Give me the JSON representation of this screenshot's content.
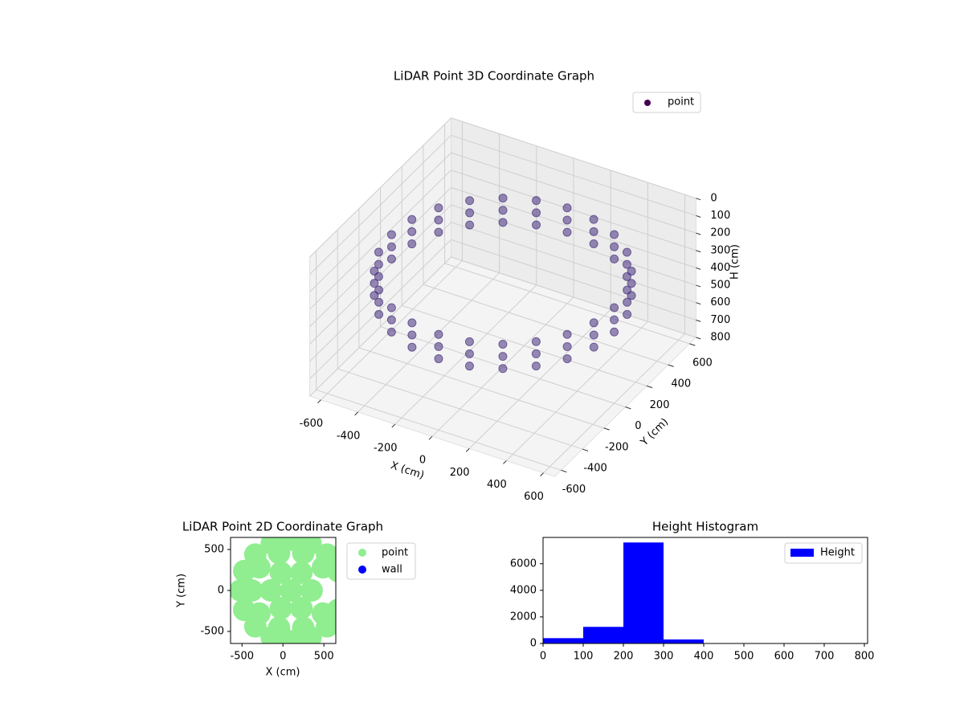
{
  "chart_data": [
    {
      "type": "scatter3d",
      "title": "LiDAR Point 3D Coordinate Graph",
      "xlabel": "X (cm)",
      "ylabel": "Y (cm)",
      "zlabel": "H (cm)",
      "xlim": [
        -660,
        660
      ],
      "ylim": [
        -660,
        660
      ],
      "zlim": [
        800,
        0
      ],
      "xticks": [
        -600,
        -400,
        -200,
        0,
        200,
        400,
        600
      ],
      "yticks": [
        -600,
        -400,
        -200,
        0,
        200,
        400,
        600
      ],
      "zticks": [
        0,
        100,
        200,
        300,
        400,
        500,
        600,
        700,
        800
      ],
      "grid": true,
      "legend": "upper right",
      "series": [
        {
          "name": "point",
          "color": "#46307e",
          "legend_color": "#440154",
          "x": [
            600,
            580,
            520,
            424,
            300,
            155,
            0,
            -155,
            -300,
            -424,
            -520,
            -580,
            -600,
            -580,
            -520,
            -424,
            -300,
            -155,
            0,
            155,
            300,
            424,
            520,
            580,
            600,
            580,
            520,
            424,
            300,
            155,
            0,
            -155,
            -300,
            -424,
            -520,
            -580,
            -600,
            -580,
            -520,
            -424,
            -300,
            -155,
            0,
            155,
            300,
            424,
            520,
            580,
            600,
            580,
            520,
            424,
            300,
            155,
            0,
            -155,
            -300,
            -424,
            -520,
            -580,
            -600,
            -580,
            -520,
            -424,
            -300,
            -155,
            0,
            155,
            300,
            424,
            520,
            580
          ],
          "y": [
            0,
            155,
            300,
            424,
            520,
            580,
            600,
            580,
            520,
            424,
            300,
            155,
            0,
            -155,
            -300,
            -424,
            -520,
            -580,
            -600,
            -580,
            -520,
            -424,
            -300,
            -155,
            0,
            155,
            300,
            424,
            520,
            580,
            600,
            580,
            520,
            424,
            300,
            155,
            0,
            -155,
            -300,
            -424,
            -520,
            -580,
            -600,
            -580,
            -520,
            -424,
            -300,
            -155,
            0,
            155,
            300,
            424,
            520,
            580,
            600,
            580,
            520,
            424,
            300,
            155,
            0,
            -155,
            -300,
            -424,
            -520,
            -580,
            -600,
            -580,
            -520,
            -424,
            -300,
            -155
          ],
          "z": [
            250,
            250,
            250,
            250,
            250,
            250,
            250,
            250,
            250,
            250,
            250,
            250,
            250,
            250,
            250,
            250,
            250,
            250,
            250,
            250,
            250,
            250,
            250,
            250,
            320,
            320,
            320,
            320,
            320,
            320,
            320,
            320,
            320,
            320,
            320,
            320,
            320,
            320,
            320,
            320,
            320,
            320,
            320,
            320,
            320,
            320,
            320,
            320,
            390,
            390,
            390,
            390,
            390,
            390,
            390,
            390,
            390,
            390,
            390,
            390,
            390,
            390,
            390,
            390,
            390,
            390,
            390,
            390,
            390,
            390,
            390,
            390
          ]
        }
      ]
    },
    {
      "type": "scatter",
      "title": "LiDAR Point 2D Coordinate Graph",
      "xlabel": "X (cm)",
      "ylabel": "Y (cm)",
      "xlim": [
        -640,
        645
      ],
      "ylim": [
        -647,
        647
      ],
      "xticks": [
        -500,
        0,
        500
      ],
      "yticks": [
        -500,
        0,
        500
      ],
      "legend": "outside right",
      "series": [
        {
          "name": "point",
          "color": "#90ee90",
          "x": [
            100,
            350,
            225,
            -25,
            -150,
            -25,
            225,
            488,
            248,
            -48,
            -288,
            -380,
            -288,
            -48,
            248,
            488,
            673,
            538,
            337,
            100,
            -137,
            -338,
            -473,
            -520,
            -473,
            -338,
            -137,
            100,
            337,
            538,
            673
          ],
          "y": [
            0,
            0,
            217,
            217,
            0,
            -217,
            -217,
            282,
            456,
            456,
            282,
            0,
            -282,
            -456,
            -456,
            -282,
            237,
            438,
            573,
            620,
            573,
            438,
            237,
            0,
            -237,
            -438,
            -573,
            -620,
            -573,
            -438,
            -237
          ]
        },
        {
          "name": "wall",
          "color": "#0000ff",
          "x": [],
          "y": []
        }
      ]
    },
    {
      "type": "histogram",
      "title": "Height Histogram",
      "bins": [
        0,
        100,
        200,
        300,
        400,
        500,
        600,
        700,
        800
      ],
      "values": [
        400,
        1250,
        7600,
        300,
        0,
        0,
        0,
        0
      ],
      "xlim": [
        0,
        808
      ],
      "ylim": [
        0,
        7980
      ],
      "xticks": [
        0,
        100,
        200,
        300,
        400,
        500,
        600,
        700,
        800
      ],
      "yticks": [
        0,
        2000,
        4000,
        6000
      ],
      "legend": "upper right",
      "series_name": "Height",
      "color": "#0000ff"
    }
  ]
}
